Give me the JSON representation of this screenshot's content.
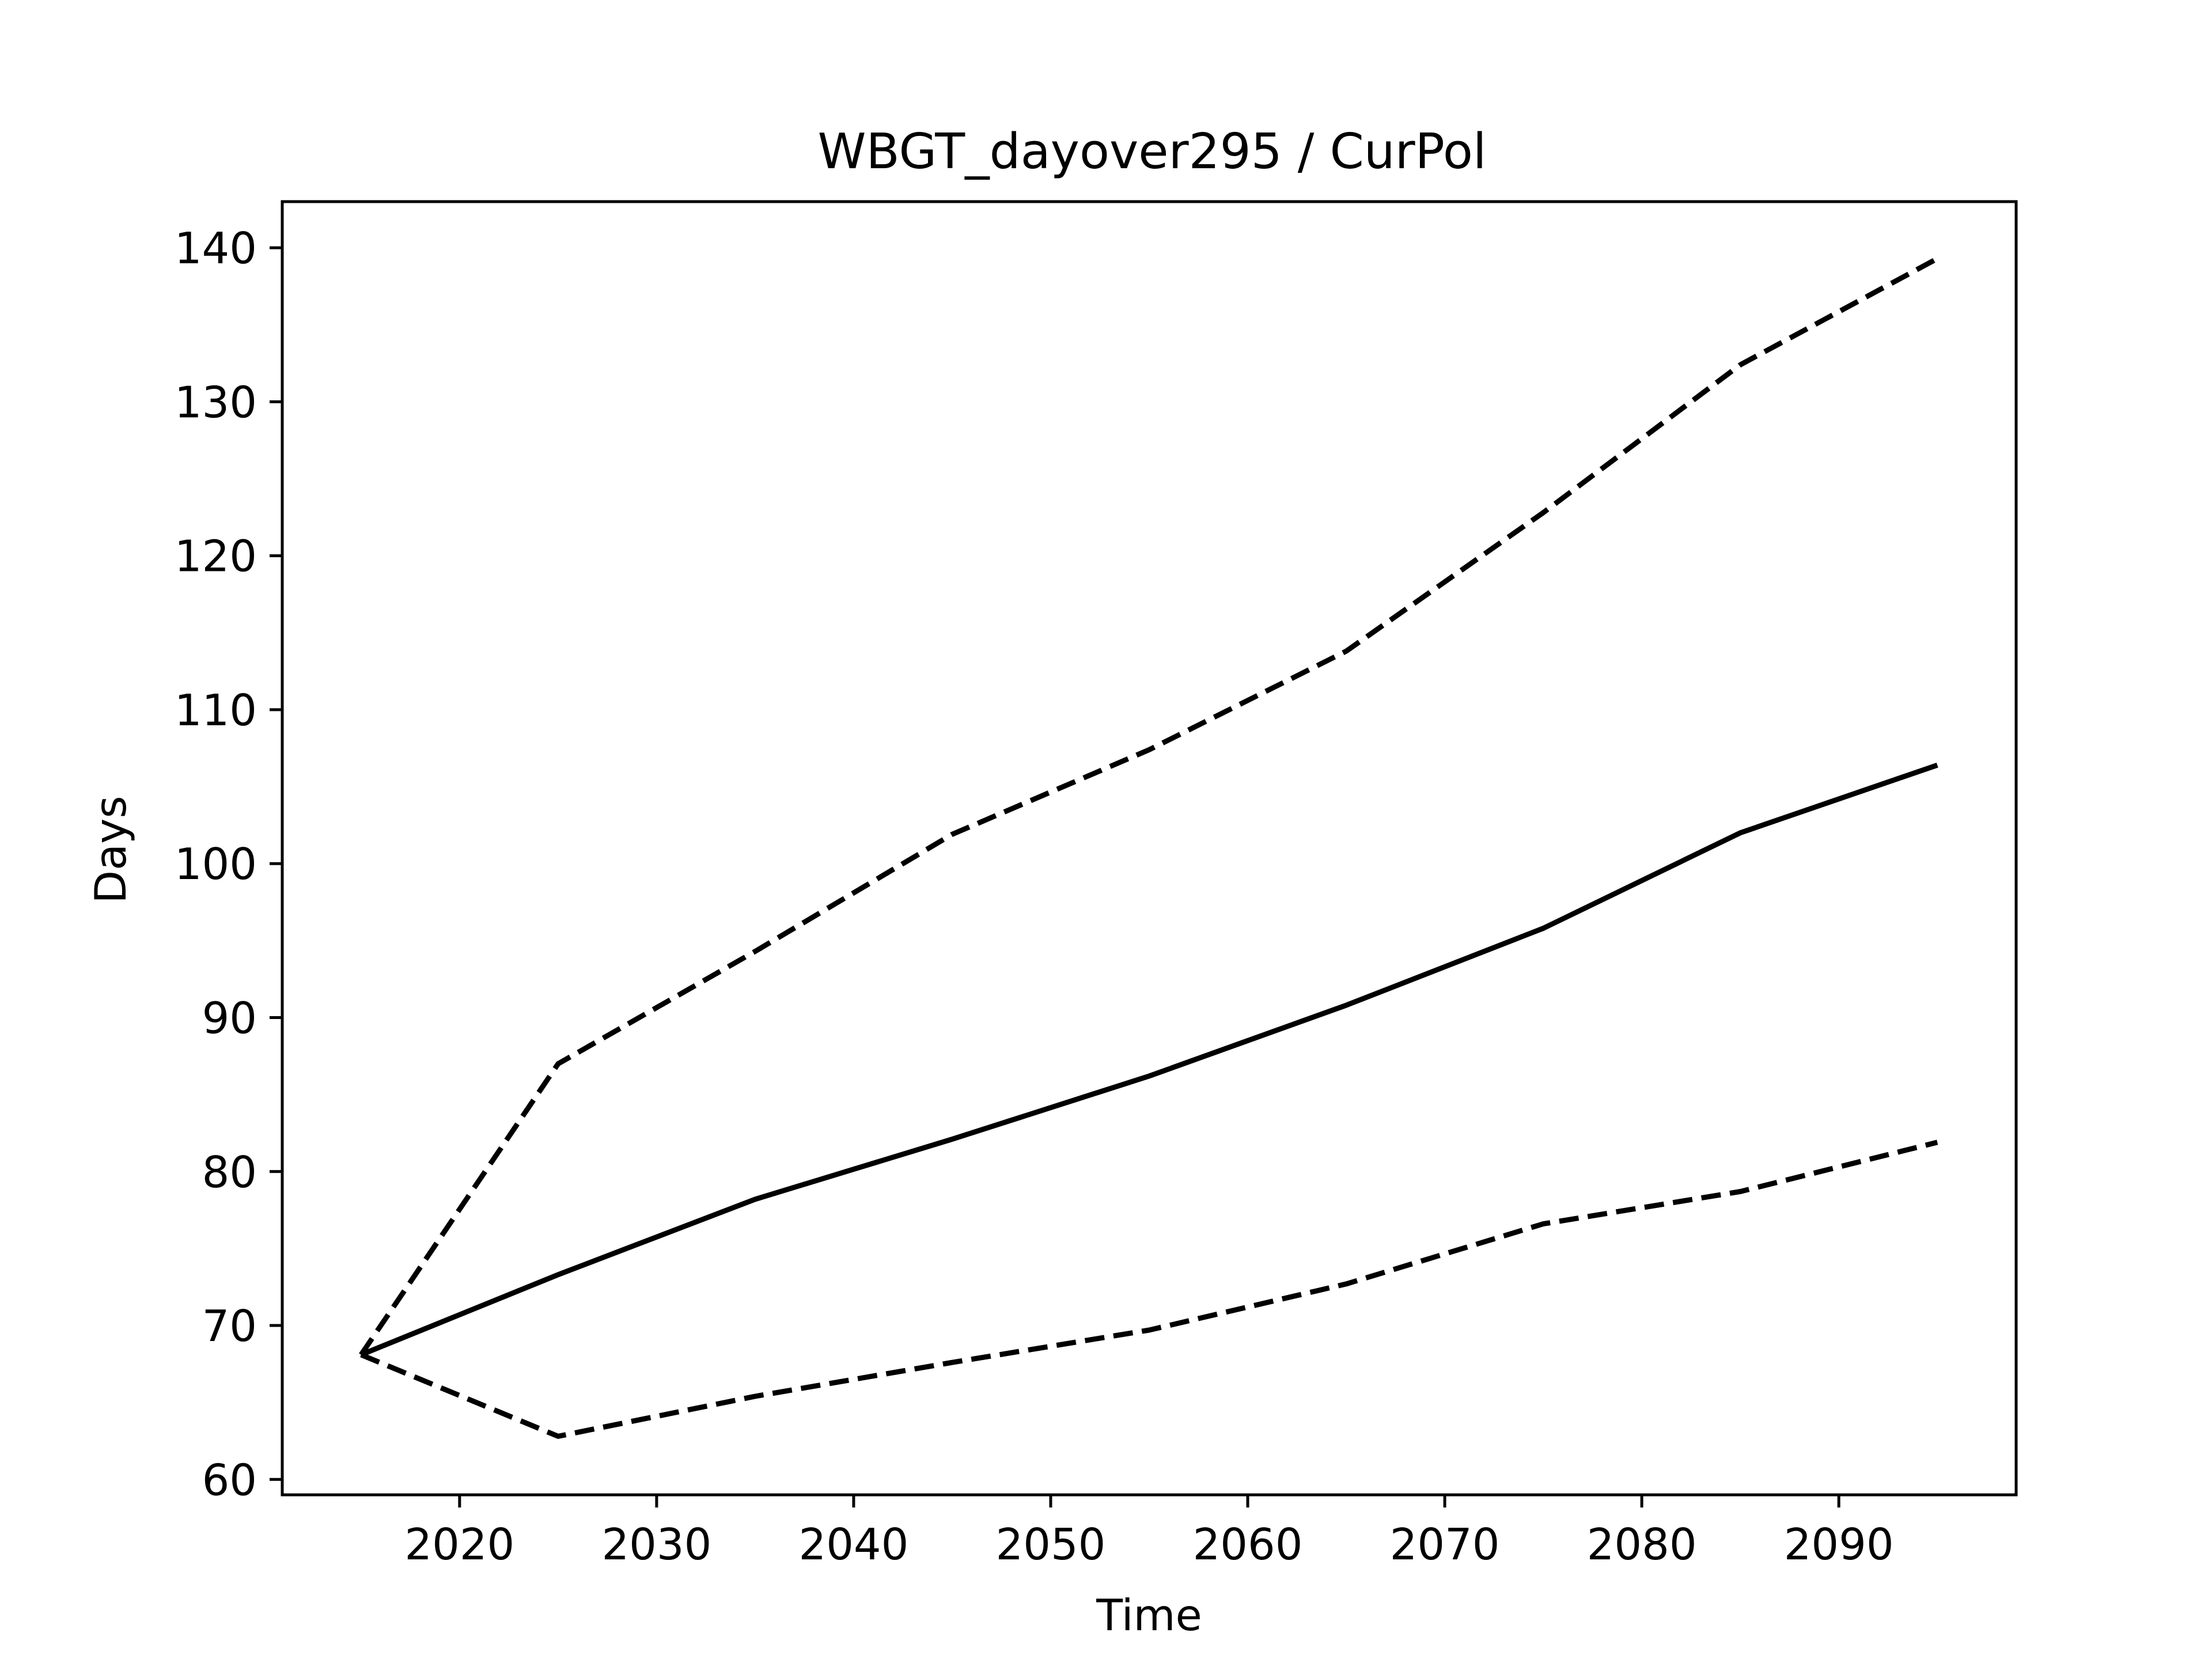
{
  "chart_data": {
    "type": "line",
    "title": "WBGT_dayover295 / CurPol",
    "xlabel": "Time",
    "ylabel": "Days",
    "xlim": [
      2011,
      2099
    ],
    "ylim": [
      59,
      143
    ],
    "x_ticks": [
      2020,
      2030,
      2040,
      2050,
      2060,
      2070,
      2080,
      2090
    ],
    "y_ticks": [
      60,
      70,
      80,
      90,
      100,
      110,
      120,
      130,
      140
    ],
    "x_tick_labels": [
      "2020",
      "2030",
      "2040",
      "2050",
      "2060",
      "2070",
      "2080",
      "2090"
    ],
    "y_tick_labels": [
      "60",
      "70",
      "80",
      "90",
      "100",
      "110",
      "120",
      "130",
      "140"
    ],
    "grid": false,
    "x": [
      2015,
      2025,
      2035,
      2045,
      2055,
      2065,
      2075,
      2085,
      2095
    ],
    "series": [
      {
        "style": "solid",
        "color": "#000000",
        "values": [
          68.1,
          73.3,
          78.2,
          82.1,
          86.2,
          90.8,
          95.8,
          102.0,
          106.4
        ]
      },
      {
        "style": "dashed",
        "color": "#000000",
        "values": [
          68.1,
          87.0,
          94.3,
          101.9,
          107.4,
          113.8,
          122.8,
          132.4,
          139.3
        ]
      },
      {
        "style": "dashed",
        "color": "#000000",
        "values": [
          68.1,
          62.8,
          65.4,
          67.6,
          69.7,
          72.7,
          76.6,
          78.7,
          81.9
        ]
      }
    ]
  }
}
